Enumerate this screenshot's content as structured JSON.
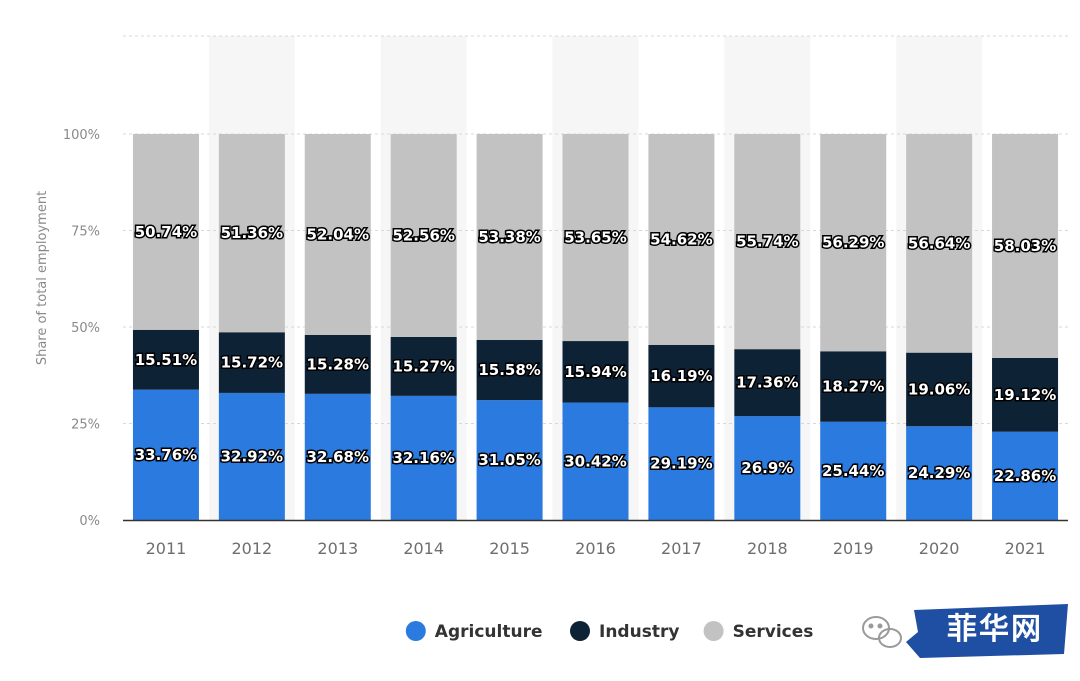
{
  "chart_data": {
    "type": "bar",
    "stacked": true,
    "percent_stacked": true,
    "categories": [
      "2011",
      "2012",
      "2013",
      "2014",
      "2015",
      "2016",
      "2017",
      "2018",
      "2019",
      "2020",
      "2021"
    ],
    "series": [
      {
        "name": "Agriculture",
        "color": "#2b7ae0",
        "values": [
          33.76,
          32.92,
          32.68,
          32.16,
          31.05,
          30.42,
          29.19,
          26.9,
          25.44,
          24.29,
          22.86
        ],
        "labels": [
          "33.76%",
          "32.92%",
          "32.68%",
          "32.16%",
          "31.05%",
          "30.42%",
          "29.19%",
          "26.9%",
          "25.44%",
          "24.29%",
          "22.86%"
        ]
      },
      {
        "name": "Industry",
        "color": "#0e2236",
        "values": [
          15.51,
          15.72,
          15.28,
          15.27,
          15.58,
          15.94,
          16.19,
          17.36,
          18.27,
          19.06,
          19.12
        ],
        "labels": [
          "15.51%",
          "15.72%",
          "15.28%",
          "15.27%",
          "15.58%",
          "15.94%",
          "16.19%",
          "17.36%",
          "18.27%",
          "19.06%",
          "19.12%"
        ]
      },
      {
        "name": "Services",
        "color": "#c2c2c2",
        "values": [
          50.74,
          51.36,
          52.04,
          52.56,
          53.38,
          53.65,
          54.62,
          55.74,
          56.29,
          56.64,
          58.03
        ],
        "labels": [
          "50.74%",
          "51.36%",
          "52.04%",
          "52.56%",
          "53.38%",
          "53.65%",
          "54.62%",
          "55.74%",
          "56.29%",
          "56.64%",
          "58.03%"
        ]
      }
    ],
    "ylabel": "Share of total employment",
    "xlabel": "",
    "ylim": [
      0,
      100
    ],
    "y_ticks": [
      "0%",
      "25%",
      "50%",
      "75%",
      "100%"
    ],
    "grid": true,
    "legend": "bottom-center"
  },
  "watermark": {
    "text": "菲华网",
    "logo_icon": "wechat-icon",
    "banner_color": "#1f4fa3"
  }
}
